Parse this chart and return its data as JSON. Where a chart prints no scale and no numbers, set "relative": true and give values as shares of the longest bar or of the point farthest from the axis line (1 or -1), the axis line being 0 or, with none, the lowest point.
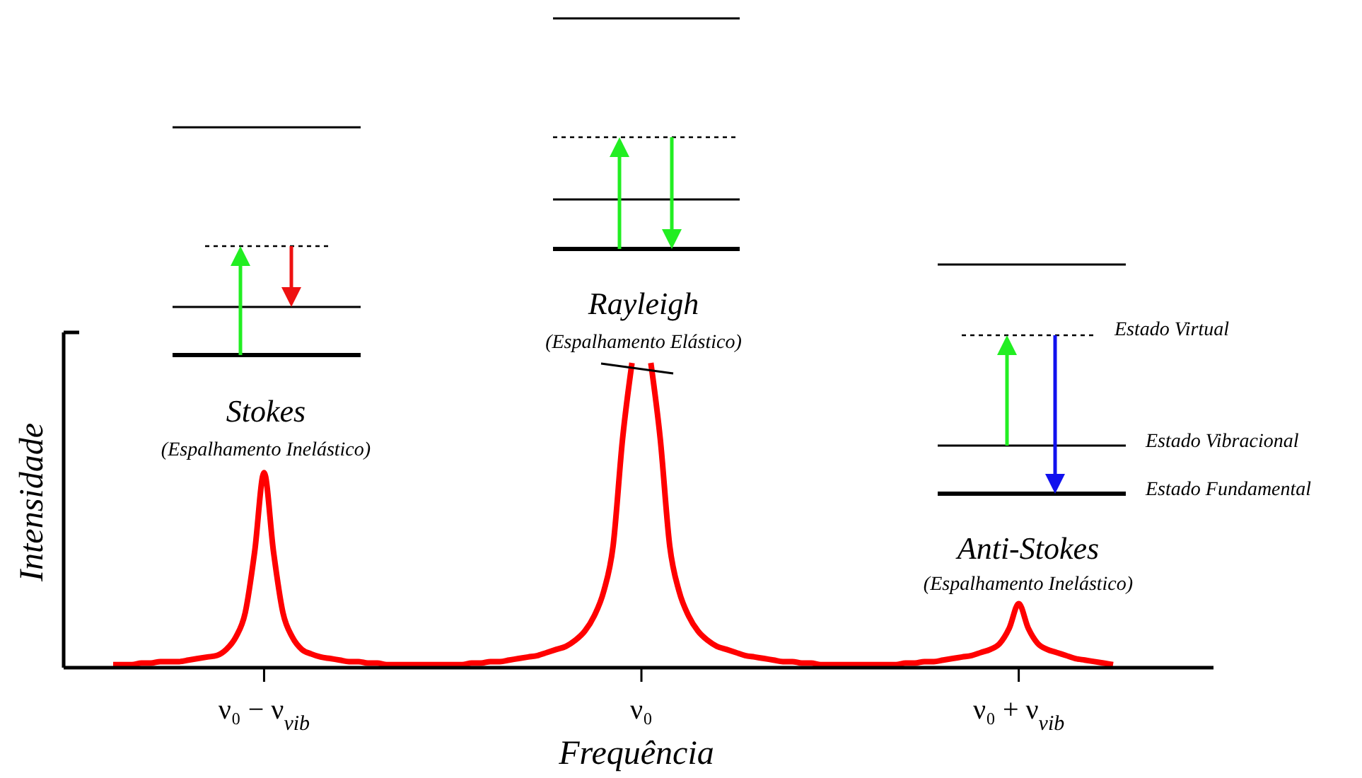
{
  "chart_data": {
    "type": "line",
    "relative": true,
    "xlabel": "Frequência",
    "ylabel": "Intensidade",
    "categories": [
      null,
      null,
      null,
      null,
      null,
      null,
      null,
      null,
      null,
      null,
      null,
      null,
      null,
      null,
      null,
      null,
      "ν₀ − ν$_{vib}$",
      null,
      null,
      null,
      null,
      null,
      null,
      null,
      null,
      null,
      null,
      null,
      null,
      null,
      null,
      null,
      null,
      null,
      null,
      null,
      null,
      null,
      null,
      null,
      null,
      null,
      null,
      null,
      null,
      null,
      null,
      null,
      null,
      null,
      null,
      null,
      null,
      null,
      null,
      null,
      "ν₀",
      null,
      null,
      null,
      null,
      null,
      null,
      null,
      null,
      null,
      null,
      null,
      null,
      null,
      null,
      null,
      null,
      null,
      null,
      null,
      null,
      null,
      null,
      null,
      null,
      null,
      null,
      null,
      null,
      null,
      null,
      null,
      null,
      null,
      null,
      null,
      null,
      null,
      null,
      null,
      "ν₀ + ν$_{vib}$",
      null,
      null,
      null,
      null,
      null,
      null,
      null,
      null,
      null,
      null
    ],
    "series": [
      {
        "color": "#ff0000",
        "values": [
          0.01,
          0.01,
          0.01,
          0.015,
          0.015,
          0.02,
          0.02,
          0.02,
          0.025,
          0.03,
          0.035,
          0.04,
          0.06,
          0.1,
          0.18,
          0.38,
          0.64,
          0.38,
          0.18,
          0.1,
          0.06,
          0.045,
          0.035,
          0.03,
          0.025,
          0.02,
          0.02,
          0.015,
          0.015,
          0.01,
          0.01,
          0.01,
          0.01,
          0.01,
          0.01,
          0.01,
          0.01,
          0.01,
          0.015,
          0.015,
          0.02,
          0.02,
          0.025,
          0.03,
          0.035,
          0.04,
          0.05,
          0.06,
          0.07,
          0.09,
          0.12,
          0.17,
          0.25,
          0.4,
          0.75,
          1,
          null,
          1,
          0.75,
          0.4,
          0.25,
          0.17,
          0.12,
          0.09,
          0.07,
          0.06,
          0.05,
          0.04,
          0.035,
          0.03,
          0.025,
          0.02,
          0.02,
          0.015,
          0.015,
          0.01,
          0.01,
          0.01,
          0.01,
          0.01,
          0.01,
          0.01,
          0.01,
          0.01,
          0.015,
          0.015,
          0.02,
          0.02,
          0.025,
          0.03,
          0.035,
          0.04,
          0.05,
          0.06,
          0.08,
          0.13,
          0.21,
          0.13,
          0.08,
          0.06,
          0.05,
          0.04,
          0.03,
          0.025,
          0.02,
          0.015,
          0.01
        ]
      }
    ],
    "annotations": [
      "Stokes",
      "(Espalhamento Inelástico)",
      "Rayleigh",
      "(Espalhamento Elástico)",
      "Anti-Stokes",
      "(Espalhamento Inelástico)",
      "Estado Virtual",
      "Estado Vibracional",
      "Estado Fundamental"
    ],
    "grid": false,
    "legend": false,
    "marker": "none",
    "line_style": "solid"
  }
}
